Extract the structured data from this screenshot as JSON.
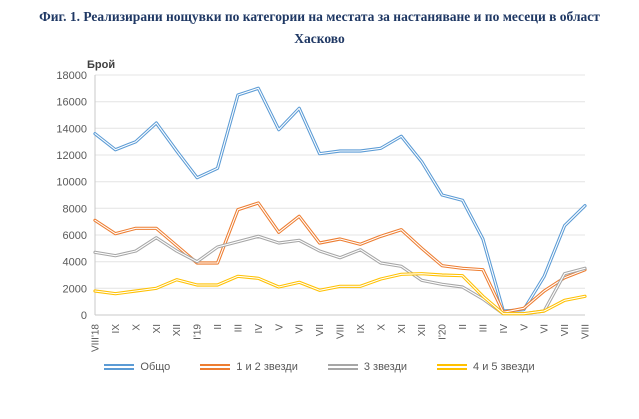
{
  "title": "Фиг. 1. Реализирани нощувки по категории на местата за настаняване и по месеци в област Хасково",
  "chart_data": {
    "type": "line",
    "ylabel": "Брой",
    "ylim": [
      0,
      18000
    ],
    "ytick_step": 2000,
    "grid": true,
    "legend_position": "bottom",
    "categories": [
      "VIII'18",
      "IX",
      "X",
      "XI",
      "XII",
      "I'19",
      "II",
      "III",
      "IV",
      "V",
      "VI",
      "VII",
      "VIII",
      "IX",
      "X",
      "XI",
      "XII",
      "I'20",
      "II",
      "III",
      "IV",
      "V",
      "VI",
      "VII",
      "VIII"
    ],
    "series": [
      {
        "name": "Общо",
        "color": "#5B9BD5",
        "values": [
          13600,
          12400,
          13000,
          14400,
          12300,
          10300,
          11000,
          16500,
          17000,
          13900,
          15500,
          12100,
          12300,
          12300,
          12500,
          13400,
          11500,
          9000,
          8600,
          5700,
          300,
          400,
          2900,
          6700,
          8200
        ]
      },
      {
        "name": "1 и 2 звезди",
        "color": "#ED7D31",
        "values": [
          7100,
          6100,
          6500,
          6500,
          5200,
          3900,
          3900,
          7900,
          8400,
          6200,
          7400,
          5400,
          5700,
          5300,
          5900,
          6400,
          5000,
          3700,
          3500,
          3400,
          200,
          500,
          1800,
          2800,
          3400
        ]
      },
      {
        "name": "3 звезди",
        "color": "#A6A6A6",
        "values": [
          4700,
          4450,
          4800,
          5800,
          4800,
          4000,
          5100,
          5500,
          5900,
          5400,
          5600,
          4800,
          4300,
          4900,
          3900,
          3650,
          2600,
          2300,
          2100,
          1200,
          100,
          100,
          300,
          3100,
          3500
        ]
      },
      {
        "name": "4 и 5 звезди",
        "color": "#FFC000",
        "values": [
          1800,
          1600,
          1800,
          2000,
          2650,
          2250,
          2250,
          2900,
          2750,
          2100,
          2450,
          1850,
          2150,
          2150,
          2700,
          3050,
          3100,
          3000,
          2950,
          1400,
          100,
          100,
          300,
          1100,
          1400
        ]
      }
    ]
  }
}
